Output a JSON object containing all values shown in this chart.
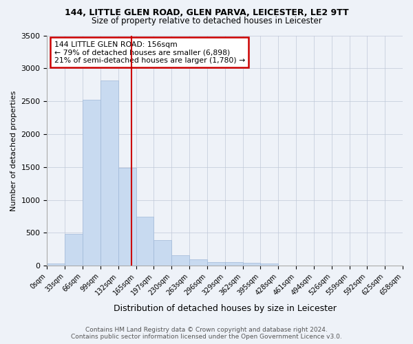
{
  "title": "144, LITTLE GLEN ROAD, GLEN PARVA, LEICESTER, LE2 9TT",
  "subtitle": "Size of property relative to detached houses in Leicester",
  "xlabel": "Distribution of detached houses by size in Leicester",
  "ylabel": "Number of detached properties",
  "bin_labels": [
    "0sqm",
    "33sqm",
    "66sqm",
    "99sqm",
    "132sqm",
    "165sqm",
    "197sqm",
    "230sqm",
    "263sqm",
    "296sqm",
    "329sqm",
    "362sqm",
    "395sqm",
    "428sqm",
    "461sqm",
    "494sqm",
    "526sqm",
    "559sqm",
    "592sqm",
    "625sqm",
    "658sqm"
  ],
  "bar_values": [
    30,
    480,
    2520,
    2820,
    1490,
    740,
    390,
    155,
    100,
    55,
    60,
    45,
    30,
    0,
    0,
    0,
    0,
    0,
    0,
    0
  ],
  "bar_color": "#c8daf0",
  "bar_edge_color": "#a0b8d8",
  "property_line_bin": 4.727,
  "annotation_title": "144 LITTLE GLEN ROAD: 156sqm",
  "annotation_line1": "← 79% of detached houses are smaller (6,898)",
  "annotation_line2": "21% of semi-detached houses are larger (1,780) →",
  "annotation_box_color": "#ffffff",
  "annotation_box_edge_color": "#cc0000",
  "vline_color": "#cc0000",
  "ylim": [
    0,
    3500
  ],
  "yticks": [
    0,
    500,
    1000,
    1500,
    2000,
    2500,
    3000,
    3500
  ],
  "footer1": "Contains HM Land Registry data © Crown copyright and database right 2024.",
  "footer2": "Contains public sector information licensed under the Open Government Licence v3.0.",
  "background_color": "#eef2f8"
}
